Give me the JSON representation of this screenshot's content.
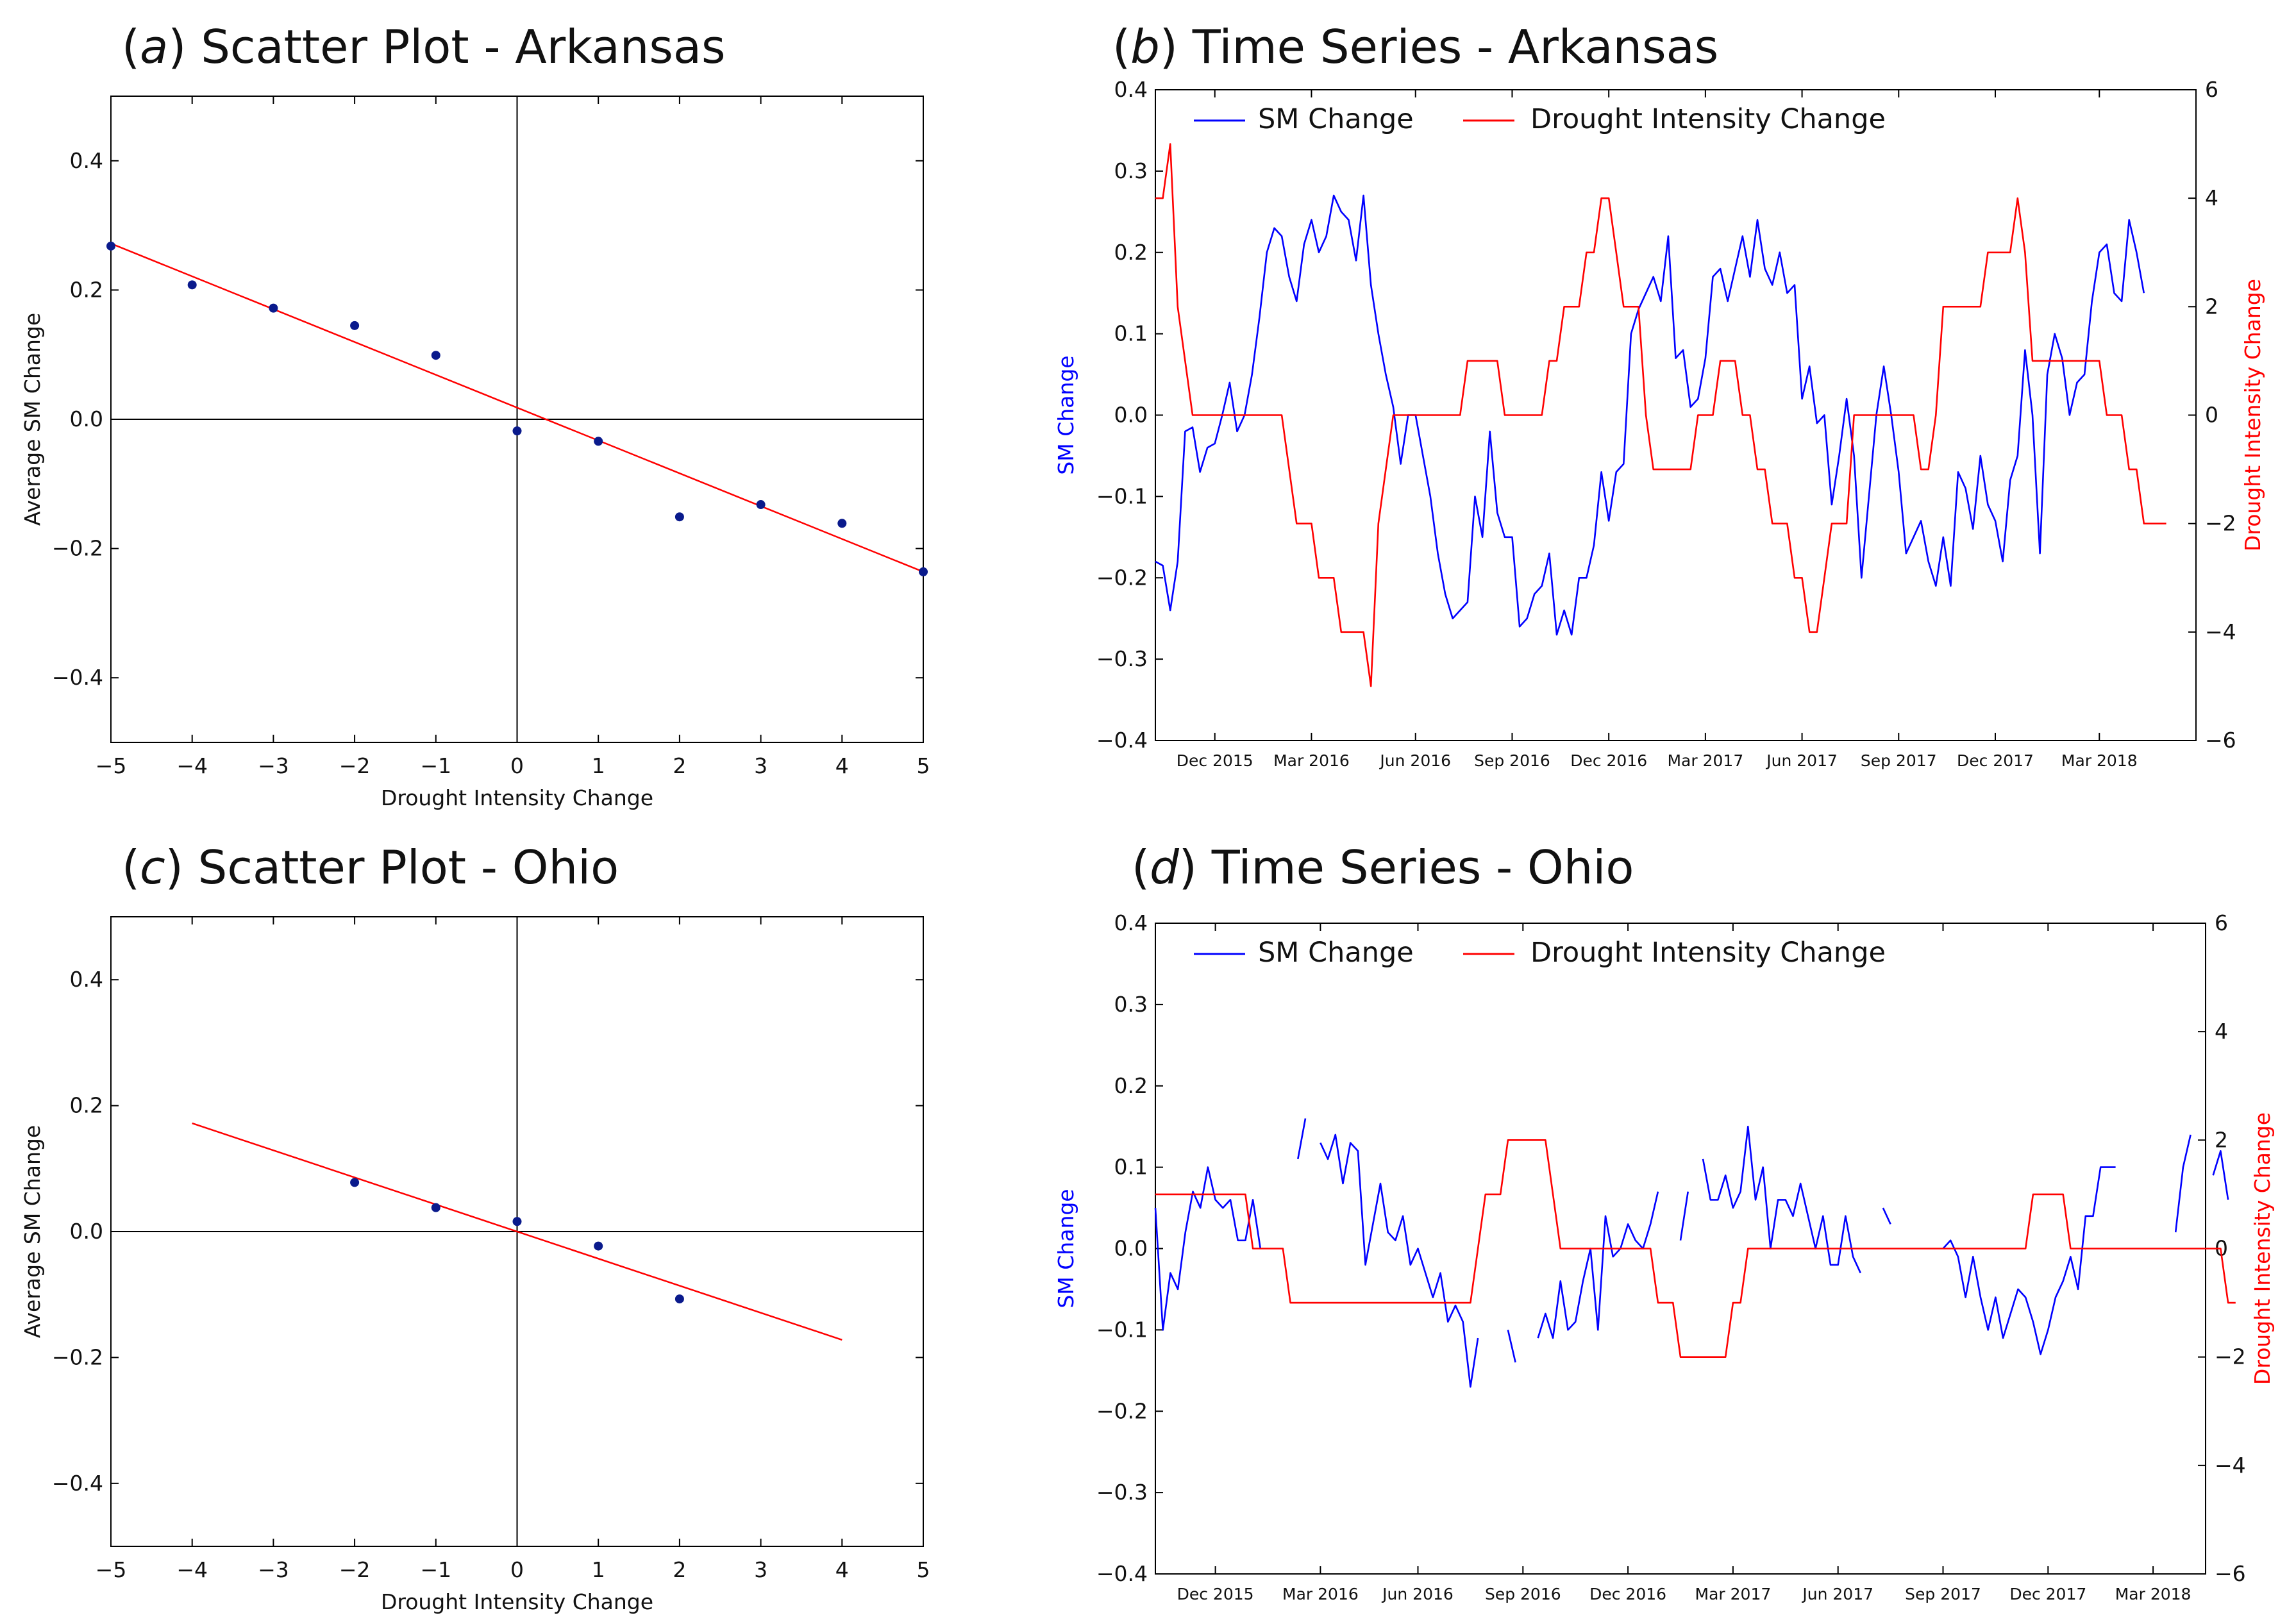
{
  "figure": {
    "colors": {
      "sm": "#0000ff",
      "drought": "#ff0000",
      "dot": "#0a1a8c",
      "axis": "#000000"
    }
  },
  "chart_data": [
    {
      "id": "a",
      "type": "scatter",
      "title_letter": "a",
      "title_text": " Scatter Plot - Arkansas",
      "xlabel": "Drought Intensity Change",
      "ylabel": "Average SM Change",
      "xlim": [
        -5,
        5
      ],
      "ylim": [
        -0.5,
        0.5
      ],
      "xticks": [
        -5,
        -4,
        -3,
        -2,
        -1,
        0,
        1,
        2,
        3,
        4,
        5
      ],
      "xtick_labels": [
        "−5",
        "−4",
        "−3",
        "−2",
        "−1",
        "0",
        "1",
        "2",
        "3",
        "4",
        "5"
      ],
      "yticks": [
        -0.4,
        -0.2,
        0.0,
        0.2,
        0.4
      ],
      "ytick_labels": [
        "−0.4",
        "−0.2",
        "0.0",
        "0.2",
        "0.4"
      ],
      "points": [
        [
          -5,
          0.268
        ],
        [
          -4,
          0.208
        ],
        [
          -3,
          0.172
        ],
        [
          -2,
          0.145
        ],
        [
          -1,
          0.099
        ],
        [
          0,
          -0.018
        ],
        [
          1,
          -0.034
        ],
        [
          2,
          -0.151
        ],
        [
          3,
          -0.132
        ],
        [
          4,
          -0.161
        ],
        [
          5,
          -0.236
        ]
      ],
      "fit_line": [
        [
          -5,
          0.272
        ],
        [
          5,
          -0.236
        ]
      ]
    },
    {
      "id": "b",
      "type": "line",
      "title_letter": "b",
      "title_text": " Time Series - Arkansas",
      "ylabel_left": "SM Change",
      "ylabel_right": "Drought Intensity Change",
      "xlim": [
        0,
        140
      ],
      "ylim_left": [
        -0.4,
        0.4
      ],
      "ylim_right": [
        -6,
        6
      ],
      "yticks_left": [
        -0.4,
        -0.3,
        -0.2,
        -0.1,
        0.0,
        0.1,
        0.2,
        0.3,
        0.4
      ],
      "yticks_left_labels": [
        "−0.4",
        "−0.3",
        "−0.2",
        "−0.1",
        "0.0",
        "0.1",
        "0.2",
        "0.3",
        "0.4"
      ],
      "yticks_right": [
        -6,
        -4,
        -2,
        0,
        2,
        4,
        6
      ],
      "yticks_right_labels": [
        "−6",
        "−4",
        "−2",
        "0",
        "2",
        "4",
        "6"
      ],
      "xticks": [
        8,
        21,
        35,
        48,
        61,
        74,
        87,
        100,
        113,
        127
      ],
      "xtick_labels": [
        "Dec 2015",
        "Mar 2016",
        "Jun 2016",
        "Sep 2016",
        "Dec 2016",
        "Mar 2017",
        "Jun 2017",
        "Sep 2017",
        "Dec 2017",
        "Mar 2018"
      ],
      "legend": [
        "SM Change",
        "Drought Intensity Change"
      ],
      "series": [
        {
          "name": "SM Change",
          "axis": "left",
          "values": [
            -0.18,
            -0.185,
            -0.24,
            -0.18,
            -0.02,
            -0.015,
            -0.07,
            -0.04,
            -0.035,
            0.0,
            0.04,
            -0.02,
            0.0,
            0.05,
            0.12,
            0.2,
            0.23,
            0.22,
            0.17,
            0.14,
            0.21,
            0.24,
            0.2,
            0.22,
            0.27,
            0.25,
            0.24,
            0.19,
            0.27,
            0.16,
            0.1,
            0.05,
            0.01,
            -0.06,
            0.0,
            0.0,
            -0.05,
            -0.1,
            -0.17,
            -0.22,
            -0.25,
            -0.24,
            -0.23,
            -0.1,
            -0.15,
            -0.02,
            -0.12,
            -0.15,
            -0.15,
            -0.26,
            -0.25,
            -0.22,
            -0.21,
            -0.17,
            -0.27,
            -0.24,
            -0.27,
            -0.2,
            -0.2,
            -0.16,
            -0.07,
            -0.13,
            -0.07,
            -0.06,
            0.1,
            0.13,
            0.15,
            0.17,
            0.14,
            0.22,
            0.07,
            0.08,
            0.01,
            0.02,
            0.07,
            0.17,
            0.18,
            0.14,
            0.18,
            0.22,
            0.17,
            0.24,
            0.18,
            0.16,
            0.2,
            0.15,
            0.16,
            0.02,
            0.06,
            -0.01,
            0.0,
            -0.11,
            -0.05,
            0.02,
            -0.05,
            -0.2,
            -0.1,
            0.0,
            0.06,
            0.0,
            -0.07,
            -0.17,
            -0.15,
            -0.13,
            -0.18,
            -0.21,
            -0.15,
            -0.21,
            -0.07,
            -0.09,
            -0.14,
            -0.05,
            -0.11,
            -0.13,
            -0.18,
            -0.08,
            -0.05,
            0.08,
            0.0,
            -0.17,
            0.05,
            0.1,
            0.07,
            0.0,
            0.04,
            0.05,
            0.14,
            0.2,
            0.21,
            0.15,
            0.14,
            0.24,
            0.2,
            0.15
          ]
        },
        {
          "name": "Drought Intensity Change",
          "axis": "right",
          "values": [
            4,
            4,
            5,
            2,
            1,
            0,
            0,
            0,
            0,
            0,
            0,
            0,
            0,
            0,
            0,
            0,
            0,
            0,
            -1,
            -2,
            -2,
            -2,
            -3,
            -3,
            -3,
            -4,
            -4,
            -4,
            -4,
            -5,
            -2,
            -1,
            0,
            0,
            0,
            0,
            0,
            0,
            0,
            0,
            0,
            0,
            1,
            1,
            1,
            1,
            1,
            0,
            0,
            0,
            0,
            0,
            0,
            1,
            1,
            2,
            2,
            2,
            3,
            3,
            4,
            4,
            3,
            2,
            2,
            2,
            0,
            -1,
            -1,
            -1,
            -1,
            -1,
            -1,
            0,
            0,
            0,
            1,
            1,
            1,
            0,
            0,
            -1,
            -1,
            -2,
            -2,
            -2,
            -3,
            -3,
            -4,
            -4,
            -3,
            -2,
            -2,
            -2,
            0,
            0,
            0,
            0,
            0,
            0,
            0,
            0,
            0,
            -1,
            -1,
            0,
            2,
            2,
            2,
            2,
            2,
            2,
            3,
            3,
            3,
            3,
            4,
            3,
            1,
            1,
            1,
            1,
            1,
            1,
            1,
            1,
            1,
            1,
            0,
            0,
            0,
            -1,
            -1,
            -2,
            -2,
            -2,
            -2
          ]
        }
      ]
    },
    {
      "id": "c",
      "type": "scatter",
      "title_letter": "c",
      "title_text": " Scatter Plot - Ohio",
      "xlabel": "Drought Intensity Change",
      "ylabel": "Average SM Change",
      "xlim": [
        -5,
        5
      ],
      "ylim": [
        -0.5,
        0.5
      ],
      "xticks": [
        -5,
        -4,
        -3,
        -2,
        -1,
        0,
        1,
        2,
        3,
        4,
        5
      ],
      "xtick_labels": [
        "−5",
        "−4",
        "−3",
        "−2",
        "−1",
        "0",
        "1",
        "2",
        "3",
        "4",
        "5"
      ],
      "yticks": [
        -0.4,
        -0.2,
        0.0,
        0.2,
        0.4
      ],
      "ytick_labels": [
        "−0.4",
        "−0.2",
        "0.0",
        "0.2",
        "0.4"
      ],
      "points": [
        [
          -2,
          0.078
        ],
        [
          -1,
          0.038
        ],
        [
          0,
          0.016
        ],
        [
          1,
          -0.023
        ],
        [
          2,
          -0.107
        ]
      ],
      "fit_line": [
        [
          -4,
          0.172
        ],
        [
          4,
          -0.172
        ]
      ]
    },
    {
      "id": "d",
      "type": "line",
      "title_letter": "d",
      "title_text": " Time Series - Ohio",
      "ylabel_left": "SM Change",
      "ylabel_right": "Drought Intensity Change",
      "xlim": [
        0,
        140
      ],
      "ylim_left": [
        -0.4,
        0.4
      ],
      "ylim_right": [
        -6,
        6
      ],
      "yticks_left": [
        -0.4,
        -0.3,
        -0.2,
        -0.1,
        0.0,
        0.1,
        0.2,
        0.3,
        0.4
      ],
      "yticks_left_labels": [
        "−0.4",
        "−0.3",
        "−0.2",
        "−0.1",
        "0.0",
        "0.1",
        "0.2",
        "0.3",
        "0.4"
      ],
      "yticks_right": [
        -6,
        -4,
        -2,
        0,
        2,
        4,
        6
      ],
      "yticks_right_labels": [
        "−6",
        "−4",
        "−2",
        "0",
        "2",
        "4",
        "6"
      ],
      "xticks": [
        8,
        22,
        35,
        49,
        63,
        77,
        91,
        105,
        119,
        133
      ],
      "xtick_labels": [
        "Dec 2015",
        "Mar 2016",
        "Jun 2016",
        "Sep 2016",
        "Dec 2016",
        "Mar 2017",
        "Jun 2017",
        "Sep 2017",
        "Dec 2017",
        "Mar 2018"
      ],
      "legend": [
        "SM Change",
        "Drought Intensity Change"
      ],
      "series": [
        {
          "name": "SM Change",
          "axis": "left",
          "values": [
            0.05,
            -0.1,
            -0.03,
            -0.05,
            0.02,
            0.07,
            0.05,
            0.1,
            0.06,
            0.05,
            0.06,
            0.01,
            0.01,
            0.06,
            0.0,
            null,
            null,
            null,
            null,
            0.11,
            0.16,
            null,
            0.13,
            0.11,
            0.14,
            0.08,
            0.13,
            0.12,
            -0.02,
            0.03,
            0.08,
            0.02,
            0.01,
            0.04,
            -0.02,
            0.0,
            -0.03,
            -0.06,
            -0.03,
            -0.09,
            -0.07,
            -0.09,
            -0.17,
            -0.11,
            null,
            null,
            null,
            -0.1,
            -0.14,
            null,
            null,
            -0.11,
            -0.08,
            -0.11,
            -0.04,
            -0.1,
            -0.09,
            -0.04,
            0.0,
            -0.1,
            0.04,
            -0.01,
            0.0,
            0.03,
            0.01,
            0.0,
            0.03,
            0.07,
            null,
            null,
            0.01,
            0.07,
            null,
            0.11,
            0.06,
            0.06,
            0.09,
            0.05,
            0.07,
            0.15,
            0.06,
            0.1,
            0.0,
            0.06,
            0.06,
            0.04,
            0.08,
            0.04,
            0.0,
            0.04,
            -0.02,
            -0.02,
            0.04,
            -0.01,
            -0.03,
            null,
            null,
            0.05,
            0.03,
            null,
            null,
            null,
            null,
            null,
            null,
            0.0,
            0.01,
            -0.01,
            -0.06,
            -0.01,
            -0.06,
            -0.1,
            -0.06,
            -0.11,
            -0.08,
            -0.05,
            -0.06,
            -0.09,
            -0.13,
            -0.1,
            -0.06,
            -0.04,
            -0.01,
            -0.05,
            0.04,
            0.04,
            0.1,
            0.1,
            0.1,
            null,
            null,
            null,
            null,
            null,
            null,
            null,
            0.02,
            0.1,
            0.14,
            null,
            null,
            0.09,
            0.12,
            0.06
          ]
        },
        {
          "name": "Drought Intensity Change",
          "axis": "right",
          "values": [
            1,
            1,
            1,
            1,
            1,
            1,
            1,
            1,
            1,
            1,
            1,
            1,
            1,
            0,
            0,
            0,
            0,
            0,
            -1,
            -1,
            -1,
            -1,
            -1,
            -1,
            -1,
            -1,
            -1,
            -1,
            -1,
            -1,
            -1,
            -1,
            -1,
            -1,
            -1,
            -1,
            -1,
            -1,
            -1,
            -1,
            -1,
            -1,
            -1,
            0,
            1,
            1,
            1,
            2,
            2,
            2,
            2,
            2,
            2,
            1,
            0,
            0,
            0,
            0,
            0,
            0,
            0,
            0,
            0,
            0,
            0,
            0,
            0,
            -1,
            -1,
            -1,
            -2,
            -2,
            -2,
            -2,
            -2,
            -2,
            -2,
            -1,
            -1,
            0,
            0,
            0,
            0,
            0,
            0,
            0,
            0,
            0,
            0,
            0,
            0,
            0,
            0,
            0,
            0,
            0,
            0,
            0,
            0,
            0,
            0,
            0,
            0,
            0,
            0,
            0,
            0,
            0,
            0,
            0,
            0,
            0,
            0,
            0,
            0,
            0,
            0,
            1,
            1,
            1,
            1,
            1,
            0,
            0,
            0,
            0,
            0,
            0,
            0,
            0,
            0,
            0,
            0,
            0,
            0,
            0,
            0,
            0,
            0,
            0,
            0,
            0,
            0,
            -1,
            -1
          ]
        }
      ]
    }
  ]
}
